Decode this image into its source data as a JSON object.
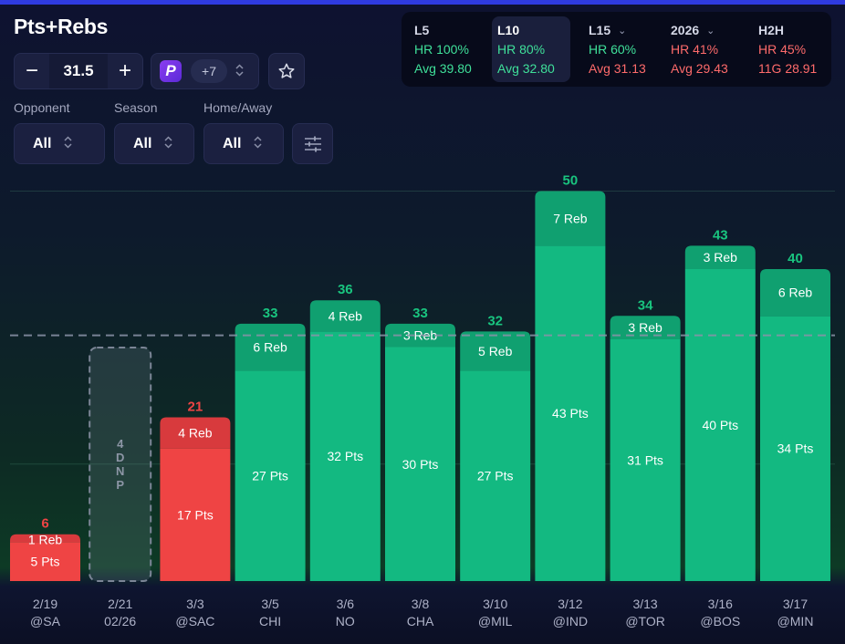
{
  "header": {
    "title": "Pts+Rebs"
  },
  "controls": {
    "line_value": "31.5",
    "minus_symbol": "−",
    "plus_symbol": "+",
    "book_logo": "P",
    "book_more": "+7"
  },
  "filters": [
    {
      "label": "Opponent",
      "value": "All"
    },
    {
      "label": "Season",
      "value": "All"
    },
    {
      "label": "Home/Away",
      "value": "All"
    }
  ],
  "stats": [
    {
      "label": "L5",
      "hr": "HR 100%",
      "avg": "Avg 39.80",
      "dropdown": false,
      "active": false,
      "hr_color": "#3fe09a",
      "avg_color": "#3fe09a"
    },
    {
      "label": "L10",
      "hr": "HR 80%",
      "avg": "Avg 32.80",
      "dropdown": false,
      "active": true,
      "hr_color": "#3fe09a",
      "avg_color": "#3fe09a"
    },
    {
      "label": "L15",
      "hr": "HR 60%",
      "avg": "Avg 31.13",
      "dropdown": true,
      "active": false,
      "hr_color": "#3fe09a",
      "avg_color": "#ff6b6b"
    },
    {
      "label": "2026",
      "hr": "HR 41%",
      "avg": "Avg 29.43",
      "dropdown": true,
      "active": false,
      "hr_color": "#ff6b6b",
      "avg_color": "#ff6b6b"
    },
    {
      "label": "H2H",
      "hr": "HR 45%",
      "avg": "11G 28.91",
      "dropdown": false,
      "active": false,
      "hr_color": "#ff6b6b",
      "avg_color": "#ff6b6b"
    }
  ],
  "chart_data": {
    "type": "bar",
    "stacked": true,
    "line": 31.5,
    "ylim": [
      0,
      55
    ],
    "colors": {
      "over_pts": "#13b981",
      "over_reb": "#10a070",
      "over_total": "#19c47f",
      "under_pts": "#ef4444",
      "under_reb": "#d83a3d",
      "under_total": "#ef4444"
    },
    "games": [
      {
        "date": "2/19",
        "opp": "@SA",
        "pts": 5,
        "reb": 1,
        "total": 6,
        "pts_label": "5 Pts",
        "reb_label": "1 Reb"
      },
      {
        "date": "2/21",
        "opp": "02/26",
        "dnp": true,
        "dnp_label": "DNP",
        "dnp_num": "4"
      },
      {
        "date": "3/3",
        "opp": "@SAC",
        "pts": 17,
        "reb": 4,
        "total": 21,
        "pts_label": "17 Pts",
        "reb_label": "4 Reb"
      },
      {
        "date": "3/5",
        "opp": "CHI",
        "pts": 27,
        "reb": 6,
        "total": 33,
        "pts_label": "27 Pts",
        "reb_label": "6 Reb"
      },
      {
        "date": "3/6",
        "opp": "NO",
        "pts": 32,
        "reb": 4,
        "total": 36,
        "pts_label": "32 Pts",
        "reb_label": "4 Reb"
      },
      {
        "date": "3/8",
        "opp": "CHA",
        "pts": 30,
        "reb": 3,
        "total": 33,
        "pts_label": "30 Pts",
        "reb_label": "3 Reb"
      },
      {
        "date": "3/10",
        "opp": "@MIL",
        "pts": 27,
        "reb": 5,
        "total": 32,
        "pts_label": "27 Pts",
        "reb_label": "5 Reb"
      },
      {
        "date": "3/12",
        "opp": "@IND",
        "pts": 43,
        "reb": 7,
        "total": 50,
        "pts_label": "43 Pts",
        "reb_label": "7 Reb"
      },
      {
        "date": "3/13",
        "opp": "@TOR",
        "pts": 31,
        "reb": 3,
        "total": 34,
        "pts_label": "31 Pts",
        "reb_label": "3 Reb"
      },
      {
        "date": "3/16",
        "opp": "@BOS",
        "pts": 40,
        "reb": 3,
        "total": 43,
        "pts_label": "40 Pts",
        "reb_label": "3 Reb"
      },
      {
        "date": "3/17",
        "opp": "@MIN",
        "pts": 34,
        "reb": 6,
        "total": 40,
        "pts_label": "34 Pts",
        "reb_label": "6 Reb"
      }
    ]
  }
}
